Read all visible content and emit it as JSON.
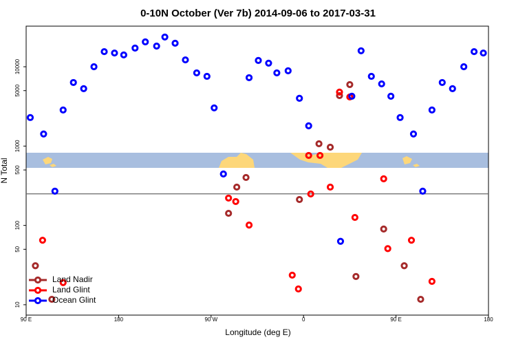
{
  "chart_data": {
    "type": "scatter",
    "title": "0-10N October (Ver 7b)   2014-09-06 to 2017-03-31",
    "xlabel": "Longitude (deg E)",
    "ylabel": "N Total",
    "log_y": true,
    "legend": "bottom-left",
    "xlim": [
      90,
      540
    ],
    "ylim": [
      7.4,
      32500
    ],
    "xticks": [
      {
        "value": 90,
        "label": "90 E"
      },
      180,
      {
        "value": 270,
        "label": "90 W"
      },
      {
        "value": 360,
        "label": "0"
      },
      {
        "value": 450,
        "label": "90 E"
      },
      {
        "value": 540,
        "label": "180"
      }
    ],
    "yticks": [
      10,
      50,
      100,
      500,
      1000,
      5000,
      10000
    ],
    "reference_line": 250,
    "series": [
      {
        "name": "Land Nadir",
        "color": "#a52a2a",
        "x": [
          99,
          115,
          287,
          295,
          304,
          356,
          375,
          386,
          395,
          405,
          411,
          438,
          458,
          474
        ],
        "values": [
          31,
          11.7,
          142,
          304,
          402,
          212,
          1070,
          968,
          4330,
          5960,
          22.7,
          90,
          31,
          11.7
        ]
      },
      {
        "name": "Land Glint",
        "color": "#ff0000",
        "x": [
          106,
          126,
          287,
          294,
          307,
          349,
          355,
          365,
          367,
          376,
          386,
          395,
          405,
          410,
          438,
          442,
          465,
          485
        ],
        "values": [
          65,
          19,
          221,
          200,
          101,
          23.6,
          15.8,
          762,
          249,
          762,
          304,
          4790,
          4160,
          126,
          387,
          51,
          65,
          19.7
        ]
      },
      {
        "name": "Ocean Glint",
        "color": "#0000ff",
        "x": [
          94,
          107,
          118,
          126,
          136,
          146,
          156,
          166,
          176,
          185,
          196,
          206,
          217,
          225,
          235,
          245,
          256,
          266,
          273,
          282,
          307,
          316,
          326,
          334,
          345,
          356,
          365,
          396,
          407,
          416,
          426,
          436,
          445,
          454,
          467,
          476,
          485,
          495,
          505,
          516,
          526,
          535
        ],
        "values": [
          2290,
          1420,
          270,
          2850,
          6330,
          5290,
          10000,
          15500,
          14900,
          14100,
          17200,
          20600,
          18200,
          23700,
          19800,
          12200,
          8370,
          7570,
          3030,
          445,
          7280,
          12000,
          11100,
          8370,
          8890,
          4000,
          1800,
          63,
          4250,
          15900,
          7570,
          6080,
          4250,
          2290,
          1420,
          270,
          2850,
          6330,
          5290,
          10000,
          15500,
          14900
        ]
      }
    ]
  }
}
